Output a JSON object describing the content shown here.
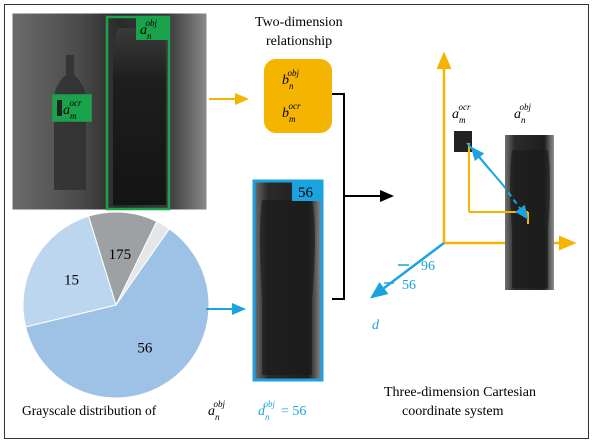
{
  "colors": {
    "green": "#1aa34a",
    "orange": "#f5b400",
    "blue": "#1aa3e0",
    "pie_dark": "#9ea1a4",
    "pie_mid": "#bcd6ef",
    "pie_main": "#9ec2e6",
    "pie_light": "#e4e6e8"
  },
  "labels": {
    "two_dim": [
      "Two-dimension",
      "relationship"
    ],
    "b_obj": {
      "base": "b",
      "sub": "n",
      "sup": "obj"
    },
    "b_ocr": {
      "base": "b",
      "sub": "m",
      "sup": "ocr"
    },
    "a_obj": {
      "base": "a",
      "sub": "n",
      "sup": "obj"
    },
    "a_ocr": {
      "base": "a",
      "sub": "m",
      "sup": "ocr"
    },
    "d_obj": {
      "base": "d",
      "sub": "n",
      "sup": "obj",
      "suffix": "= 56"
    },
    "crop_badge": "56",
    "grayscale_prefix": "Grayscale distribution of",
    "three_dim": [
      "Three-dimension Cartesian",
      "coordinate system"
    ],
    "axis_d": "d",
    "tick_96": "96",
    "tick_56": "56"
  },
  "pie": {
    "slices": [
      {
        "label": "175",
        "value": 0.12,
        "color": "#9ea1a4"
      },
      {
        "label": "",
        "value": 0.025,
        "color": "#e4e6e8"
      },
      {
        "label": "56",
        "value": 0.615,
        "color": "#9ec2e6"
      },
      {
        "label": "15",
        "value": 0.24,
        "color": "#bcd6ef"
      }
    ]
  }
}
